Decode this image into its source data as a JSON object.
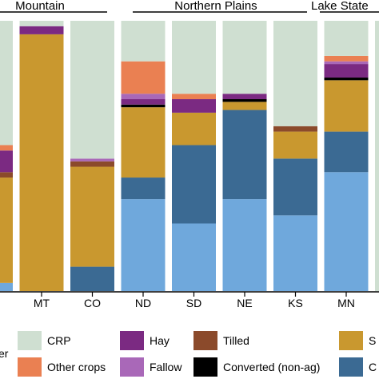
{
  "chart_data": {
    "type": "bar",
    "stacked": true,
    "orientation": "vertical",
    "ylim": [
      0,
      1
    ],
    "regions": [
      {
        "label": "Mountain",
        "categories": [
          "MT",
          "CO"
        ]
      },
      {
        "label": "Northern Plains",
        "categories": [
          "ND",
          "SD",
          "NE",
          "KS"
        ]
      },
      {
        "label": "Lake State",
        "categories": [
          "MN"
        ]
      }
    ],
    "categories": [
      "",
      "MT",
      "CO",
      "ND",
      "SD",
      "NE",
      "KS",
      "MN",
      ""
    ],
    "tick_labels": [
      "",
      "MT",
      "CO",
      "ND",
      "SD",
      "NE",
      "KS",
      "MN",
      ""
    ],
    "stack_order": [
      "First light blue category",
      "Second dark blue category",
      "Gold category",
      "Converted (non-ag)",
      "Tilled",
      "Hay",
      "Fallow",
      "Other crops",
      "CRP"
    ],
    "series": [
      {
        "legend_label": "",
        "color": "#6fa8dc",
        "values": [
          0.03,
          0.0,
          0.0,
          0.34,
          0.25,
          0.34,
          0.28,
          0.44,
          0.0
        ]
      },
      {
        "legend_label": "",
        "color": "#3b6a93",
        "values": [
          0.0,
          0.0,
          0.09,
          0.08,
          0.29,
          0.33,
          0.21,
          0.15,
          0.0
        ]
      },
      {
        "legend_label": "",
        "color": "#c9982f",
        "values": [
          0.39,
          0.95,
          0.37,
          0.26,
          0.12,
          0.03,
          0.1,
          0.19,
          0.0
        ]
      },
      {
        "legend_label": "Converted (non-ag)",
        "color": "#000000",
        "values": [
          0.0,
          0.0,
          0.0,
          0.01,
          0.0,
          0.01,
          0.0,
          0.01,
          0.0
        ]
      },
      {
        "legend_label": "Tilled",
        "color": "#8b4a2b",
        "values": [
          0.02,
          0.0,
          0.02,
          0.0,
          0.0,
          0.0,
          0.02,
          0.0,
          0.0
        ]
      },
      {
        "legend_label": "Hay",
        "color": "#7b2a82",
        "values": [
          0.08,
          0.03,
          0.0,
          0.02,
          0.05,
          0.02,
          0.0,
          0.05,
          0.0
        ]
      },
      {
        "legend_label": "Fallow",
        "color": "#a968b8",
        "values": [
          0.0,
          0.0,
          0.01,
          0.02,
          0.0,
          0.0,
          0.0,
          0.01,
          0.0
        ]
      },
      {
        "legend_label": "Other crops",
        "color": "#ea8052",
        "values": [
          0.02,
          0.0,
          0.0,
          0.12,
          0.02,
          0.0,
          0.0,
          0.02,
          0.0
        ]
      },
      {
        "legend_label": "CRP",
        "color": "#cfdfd1",
        "values": [
          0.46,
          0.02,
          0.51,
          0.15,
          0.27,
          0.27,
          0.39,
          0.13,
          1.0
        ]
      }
    ],
    "legend": {
      "placement": "bottom",
      "visible_text_fragments": [
        "er",
        "S",
        "C"
      ]
    }
  }
}
